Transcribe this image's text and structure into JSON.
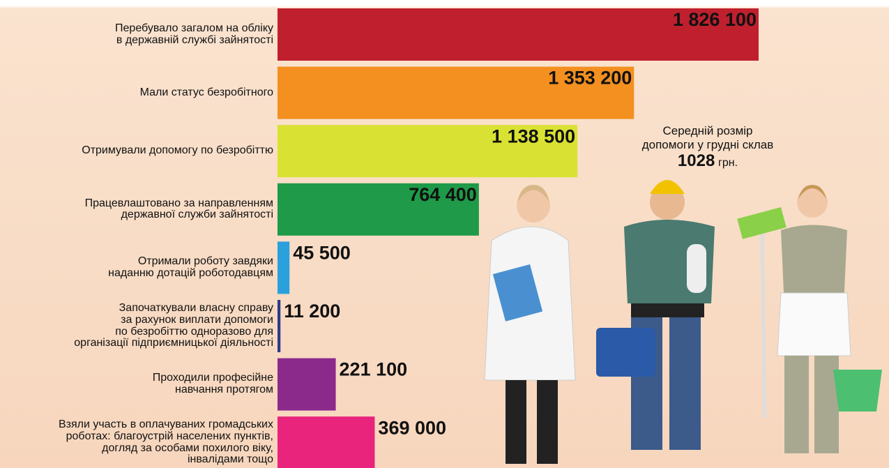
{
  "chart_data": {
    "type": "barh",
    "categories": [
      "Перебувало загалом на обліку\nв державній службі зайнятості",
      "Мали статус безробітного",
      "Отримували допомогу по безробіттю",
      "Працевлаштовано за направленням\nдержавної служби зайнятості",
      "Отримали роботу завдяки\nнаданню дотацій роботодавцям",
      "Започаткували власну справу\nза рахунок виплати допомоги\nпо безробіттю одноразово для\nорганізації підприємницької діяльності",
      "Проходили професійне\nнавчання протягом",
      "Взяли участь в оплачуваних громадських\nроботах: благоустрій населених пунктів,\nдогляд  за особами похилого віку,\nінвалідами тощо"
    ],
    "values": [
      1826100,
      1353200,
      1138500,
      764400,
      45500,
      11200,
      221100,
      369000
    ],
    "value_labels": [
      "1 826 100",
      "1 353 200",
      "1 138 500",
      "764 400",
      "45 500",
      "11 200",
      "221 100",
      "369 000"
    ],
    "colors": [
      "#c0202e",
      "#f39020",
      "#d9e232",
      "#1e9a48",
      "#2aa0dc",
      "#2c3a8c",
      "#8c2a8c",
      "#e8247c"
    ],
    "annotation": {
      "text": "Середній розмір\nдопомоги у грудні склав",
      "amount": 1028,
      "unit": "грн."
    }
  }
}
